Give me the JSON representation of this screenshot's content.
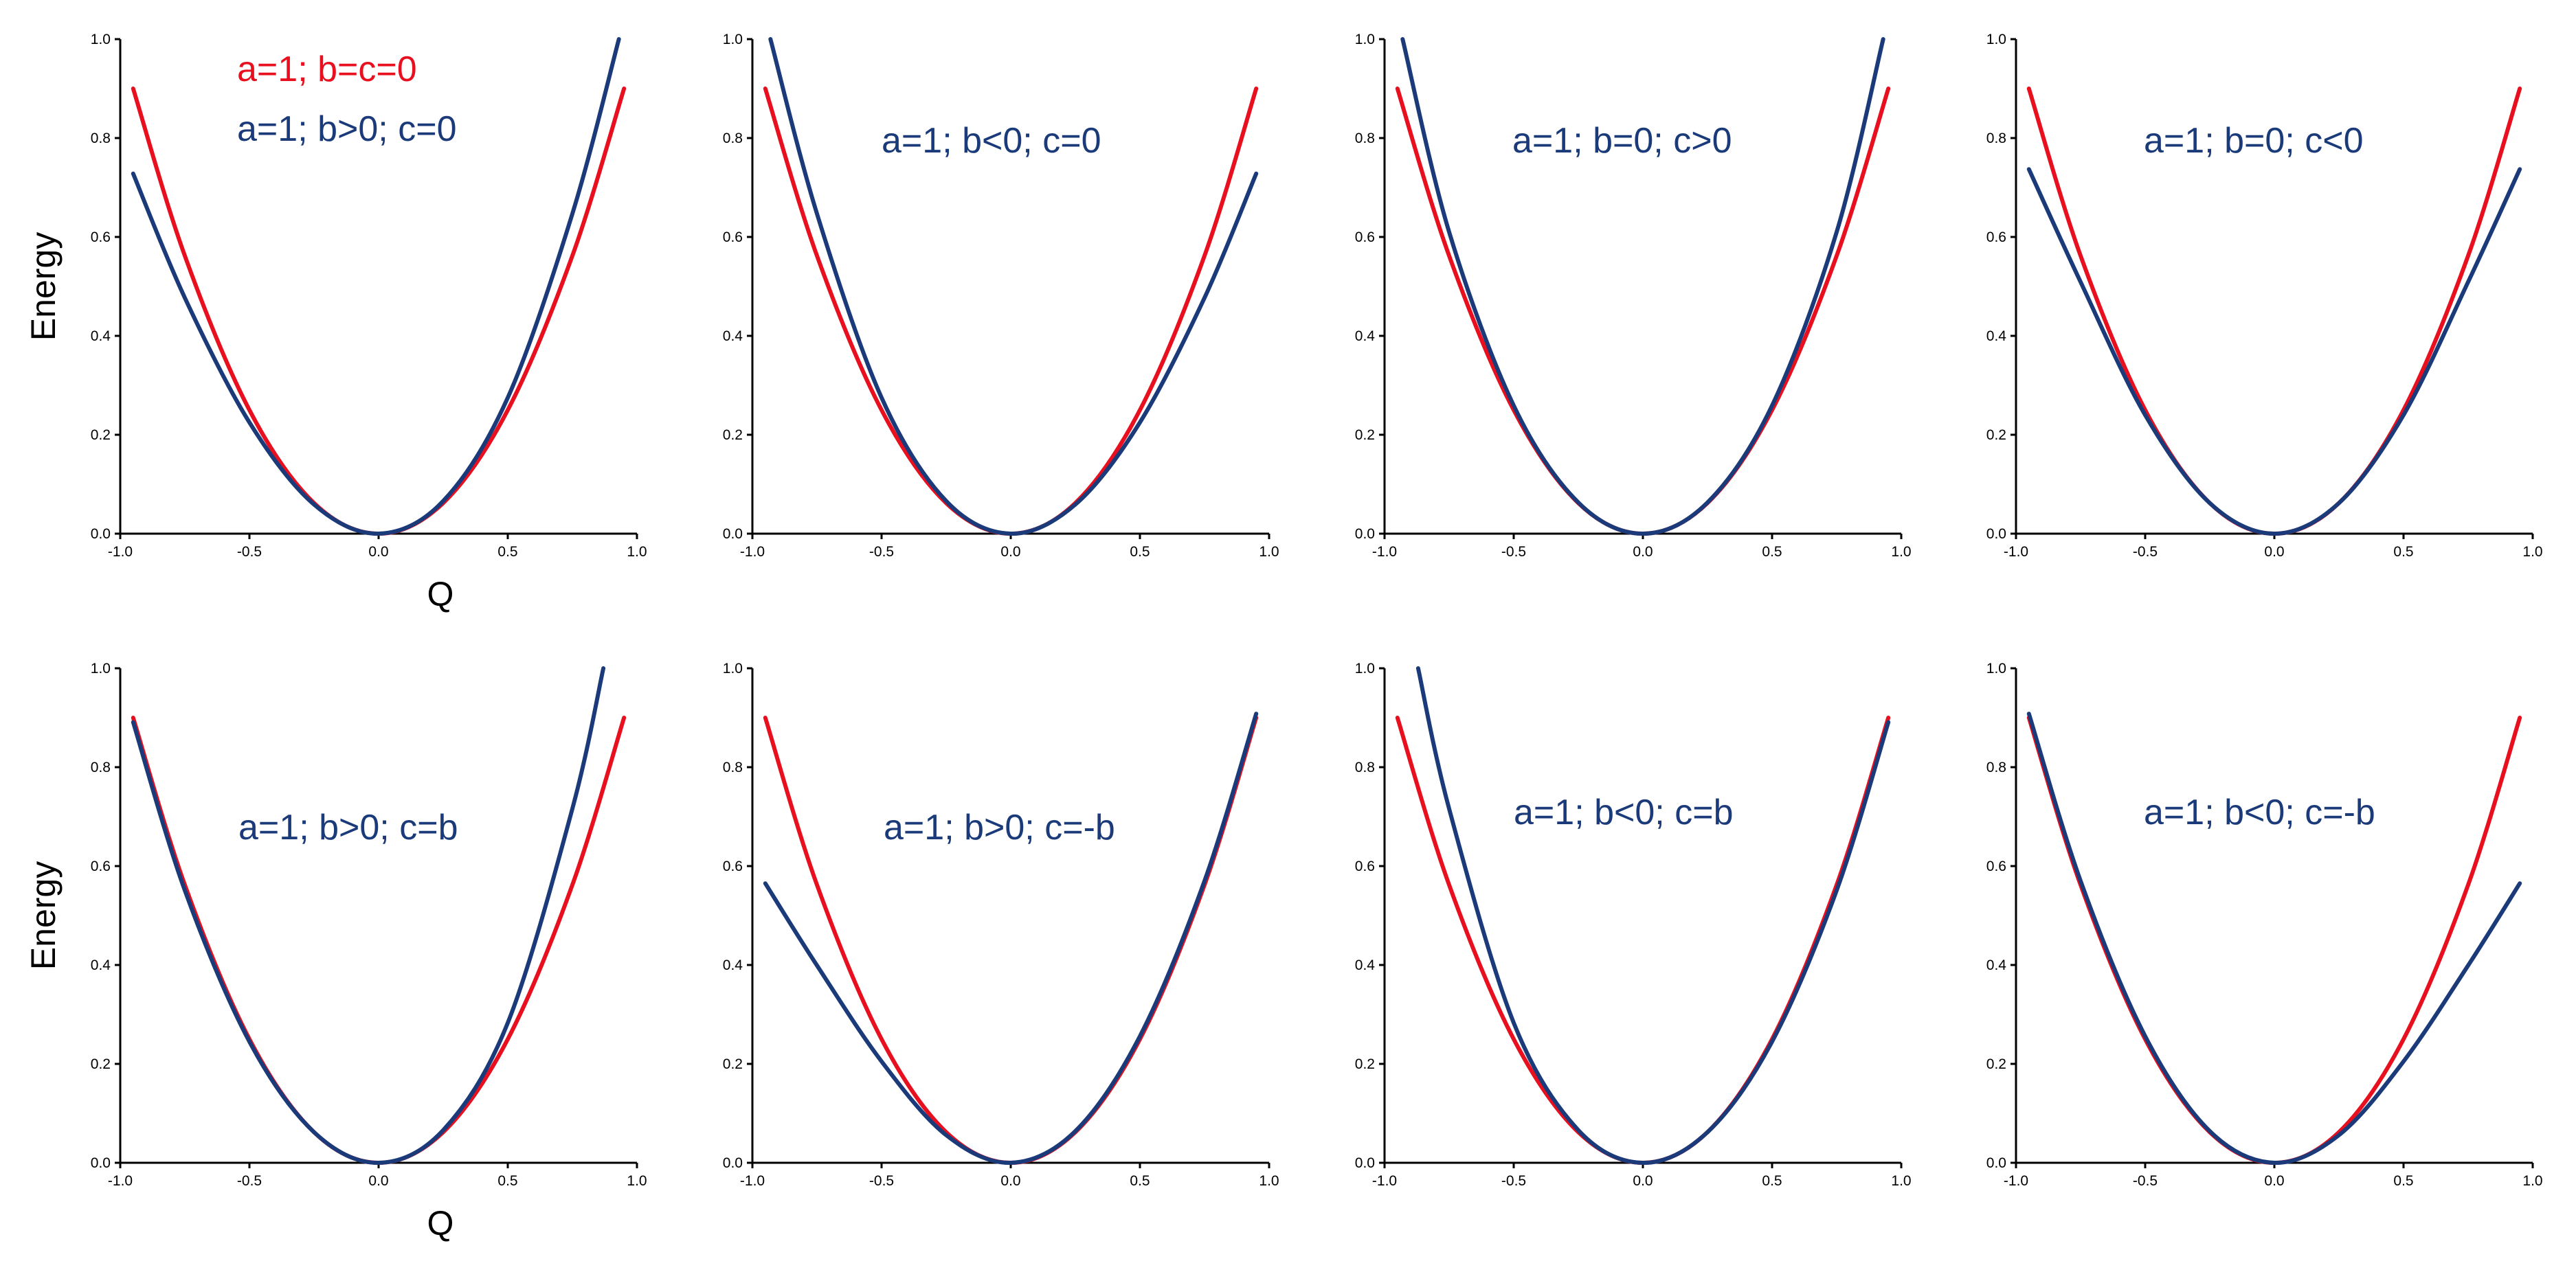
{
  "figure": {
    "panel_rows": 2,
    "panel_cols": 4,
    "colors": {
      "reference": "#e8101e",
      "modified": "#1b3a7a",
      "axis": "#000000"
    }
  },
  "chart_data": [
    {
      "type": "line",
      "row": 0,
      "col": 0,
      "xlabel": "Q",
      "ylabel": "Energy",
      "xlim": [
        -1.0,
        1.0
      ],
      "ylim": [
        0.0,
        1.0
      ],
      "xticks": [
        "-1.0",
        "-0.5",
        "0.0",
        "0.5",
        "1.0"
      ],
      "yticks": [
        "0.0",
        "0.2",
        "0.4",
        "0.6",
        "0.8",
        "1.0"
      ],
      "annotations": [
        {
          "text": "a=1; b=c=0",
          "color": "#e8101e"
        },
        {
          "text": "a=1; b>0; c=0",
          "color": "#1b3a7a"
        }
      ],
      "series": [
        {
          "color": "#e8101e",
          "x": [
            -0.95,
            -0.75,
            -0.5,
            -0.25,
            0.0,
            0.25,
            0.5,
            0.75,
            0.95
          ],
          "y": [
            0.9,
            0.562,
            0.25,
            0.062,
            0.0,
            0.062,
            0.25,
            0.562,
            0.9
          ]
        },
        {
          "color": "#1b3a7a",
          "x": [
            -0.95,
            -0.75,
            -0.5,
            -0.25,
            0.0,
            0.25,
            0.5,
            0.75,
            0.93
          ],
          "y": [
            0.728,
            0.477,
            0.225,
            0.059,
            0.0,
            0.066,
            0.275,
            0.647,
            1.0
          ]
        }
      ]
    },
    {
      "type": "line",
      "row": 0,
      "col": 1,
      "xlim": [
        -1.0,
        1.0
      ],
      "ylim": [
        0.0,
        1.0
      ],
      "xticks": [
        "-1.0",
        "-0.5",
        "0.0",
        "0.5",
        "1.0"
      ],
      "yticks": [
        "0.0",
        "0.2",
        "0.4",
        "0.6",
        "0.8",
        "1.0"
      ],
      "annotations": [
        {
          "text": "a=1; b<0; c=0",
          "color": "#1b3a7a"
        }
      ],
      "series": [
        {
          "color": "#e8101e",
          "x": [
            -0.95,
            -0.75,
            -0.5,
            -0.25,
            0.0,
            0.25,
            0.5,
            0.75,
            0.95
          ],
          "y": [
            0.9,
            0.562,
            0.25,
            0.062,
            0.0,
            0.062,
            0.25,
            0.562,
            0.9
          ]
        },
        {
          "color": "#1b3a7a",
          "x": [
            -0.93,
            -0.75,
            -0.5,
            -0.25,
            0.0,
            0.25,
            0.5,
            0.75,
            0.95
          ],
          "y": [
            1.0,
            0.647,
            0.275,
            0.066,
            0.0,
            0.059,
            0.225,
            0.477,
            0.728
          ]
        }
      ]
    },
    {
      "type": "line",
      "row": 0,
      "col": 2,
      "xlim": [
        -1.0,
        1.0
      ],
      "ylim": [
        0.0,
        1.0
      ],
      "xticks": [
        "-1.0",
        "-0.5",
        "0.0",
        "0.5",
        "1.0"
      ],
      "yticks": [
        "0.0",
        "0.2",
        "0.4",
        "0.6",
        "0.8",
        "1.0"
      ],
      "annotations": [
        {
          "text": "a=1; b=0; c>0",
          "color": "#1b3a7a"
        }
      ],
      "series": [
        {
          "color": "#e8101e",
          "x": [
            -0.95,
            -0.75,
            -0.5,
            -0.25,
            0.0,
            0.25,
            0.5,
            0.75,
            0.95
          ],
          "y": [
            0.9,
            0.562,
            0.25,
            0.062,
            0.0,
            0.062,
            0.25,
            0.562,
            0.9
          ]
        },
        {
          "color": "#1b3a7a",
          "x": [
            -0.93,
            -0.75,
            -0.5,
            -0.25,
            0.0,
            0.25,
            0.5,
            0.75,
            0.93
          ],
          "y": [
            1.0,
            0.61,
            0.259,
            0.063,
            0.0,
            0.063,
            0.259,
            0.61,
            1.0
          ]
        }
      ]
    },
    {
      "type": "line",
      "row": 0,
      "col": 3,
      "xlim": [
        -1.0,
        1.0
      ],
      "ylim": [
        0.0,
        1.0
      ],
      "xticks": [
        "-1.0",
        "-0.5",
        "0.0",
        "0.5",
        "1.0"
      ],
      "yticks": [
        "0.0",
        "0.2",
        "0.4",
        "0.6",
        "0.8",
        "1.0"
      ],
      "annotations": [
        {
          "text": "a=1; b=0; c<0",
          "color": "#1b3a7a"
        }
      ],
      "series": [
        {
          "color": "#e8101e",
          "x": [
            -0.95,
            -0.75,
            -0.5,
            -0.25,
            0.0,
            0.25,
            0.5,
            0.75,
            0.95
          ],
          "y": [
            0.9,
            0.562,
            0.25,
            0.062,
            0.0,
            0.062,
            0.25,
            0.562,
            0.9
          ]
        },
        {
          "color": "#1b3a7a",
          "x": [
            -0.95,
            -0.75,
            -0.5,
            -0.25,
            0.0,
            0.25,
            0.5,
            0.75,
            0.95
          ],
          "y": [
            0.737,
            0.509,
            0.24,
            0.062,
            0.0,
            0.062,
            0.24,
            0.509,
            0.737
          ]
        }
      ]
    },
    {
      "type": "line",
      "row": 1,
      "col": 0,
      "xlabel": "Q",
      "ylabel": "Energy",
      "xlim": [
        -1.0,
        1.0
      ],
      "ylim": [
        0.0,
        1.0
      ],
      "xticks": [
        "-1.0",
        "-0.5",
        "0.0",
        "0.5",
        "1.0"
      ],
      "yticks": [
        "0.0",
        "0.2",
        "0.4",
        "0.6",
        "0.8",
        "1.0"
      ],
      "annotations": [
        {
          "text": "a=1; b>0; c=b",
          "color": "#1b3a7a"
        }
      ],
      "series": [
        {
          "color": "#e8101e",
          "x": [
            -0.95,
            -0.75,
            -0.5,
            -0.25,
            0.0,
            0.25,
            0.5,
            0.75,
            0.95
          ],
          "y": [
            0.9,
            0.562,
            0.25,
            0.062,
            0.0,
            0.062,
            0.25,
            0.562,
            0.9
          ]
        },
        {
          "color": "#1b3a7a",
          "x": [
            -0.95,
            -0.75,
            -0.5,
            -0.25,
            0.0,
            0.25,
            0.5,
            0.75,
            0.87
          ],
          "y": [
            0.891,
            0.551,
            0.245,
            0.062,
            0.0,
            0.066,
            0.283,
            0.716,
            1.0
          ]
        }
      ]
    },
    {
      "type": "line",
      "row": 1,
      "col": 1,
      "xlim": [
        -1.0,
        1.0
      ],
      "ylim": [
        0.0,
        1.0
      ],
      "xticks": [
        "-1.0",
        "-0.5",
        "0.0",
        "0.5",
        "1.0"
      ],
      "yticks": [
        "0.0",
        "0.2",
        "0.4",
        "0.6",
        "0.8",
        "1.0"
      ],
      "annotations": [
        {
          "text": "a=1; b>0; c=-b",
          "color": "#1b3a7a"
        }
      ],
      "series": [
        {
          "color": "#e8101e",
          "x": [
            -0.95,
            -0.75,
            -0.5,
            -0.25,
            0.0,
            0.25,
            0.5,
            0.75,
            0.95
          ],
          "y": [
            0.9,
            0.562,
            0.25,
            0.062,
            0.0,
            0.062,
            0.25,
            0.562,
            0.9
          ]
        },
        {
          "color": "#1b3a7a",
          "x": [
            -0.95,
            -0.75,
            -0.5,
            -0.25,
            0.0,
            0.25,
            0.5,
            0.75,
            0.95
          ],
          "y": [
            0.565,
            0.399,
            0.205,
            0.056,
            0.0,
            0.064,
            0.256,
            0.57,
            0.908
          ]
        }
      ]
    },
    {
      "type": "line",
      "row": 1,
      "col": 2,
      "xlim": [
        -1.0,
        1.0
      ],
      "ylim": [
        0.0,
        1.0
      ],
      "xticks": [
        "-1.0",
        "-0.5",
        "0.0",
        "0.5",
        "1.0"
      ],
      "yticks": [
        "0.0",
        "0.2",
        "0.4",
        "0.6",
        "0.8",
        "1.0"
      ],
      "annotations": [
        {
          "text": "a=1; b<0; c=b",
          "color": "#1b3a7a"
        }
      ],
      "series": [
        {
          "color": "#e8101e",
          "x": [
            -0.95,
            -0.75,
            -0.5,
            -0.25,
            0.0,
            0.25,
            0.5,
            0.75,
            0.95
          ],
          "y": [
            0.9,
            0.562,
            0.25,
            0.062,
            0.0,
            0.062,
            0.25,
            0.562,
            0.9
          ]
        },
        {
          "color": "#1b3a7a",
          "x": [
            -0.87,
            -0.75,
            -0.5,
            -0.25,
            0.0,
            0.25,
            0.5,
            0.75,
            0.95
          ],
          "y": [
            1.0,
            0.716,
            0.283,
            0.066,
            0.0,
            0.062,
            0.245,
            0.551,
            0.891
          ]
        }
      ]
    },
    {
      "type": "line",
      "row": 1,
      "col": 3,
      "xlim": [
        -1.0,
        1.0
      ],
      "ylim": [
        0.0,
        1.0
      ],
      "xticks": [
        "-1.0",
        "-0.5",
        "0.0",
        "0.5",
        "1.0"
      ],
      "yticks": [
        "0.0",
        "0.2",
        "0.4",
        "0.6",
        "0.8",
        "1.0"
      ],
      "annotations": [
        {
          "text": "a=1; b<0; c=-b",
          "color": "#1b3a7a"
        }
      ],
      "series": [
        {
          "color": "#e8101e",
          "x": [
            -0.95,
            -0.75,
            -0.5,
            -0.25,
            0.0,
            0.25,
            0.5,
            0.75,
            0.95
          ],
          "y": [
            0.9,
            0.562,
            0.25,
            0.062,
            0.0,
            0.062,
            0.25,
            0.562,
            0.9
          ]
        },
        {
          "color": "#1b3a7a",
          "x": [
            -0.95,
            -0.75,
            -0.5,
            -0.25,
            0.0,
            0.25,
            0.5,
            0.75,
            0.95
          ],
          "y": [
            0.908,
            0.57,
            0.256,
            0.064,
            0.0,
            0.056,
            0.205,
            0.399,
            0.565
          ]
        }
      ]
    }
  ]
}
